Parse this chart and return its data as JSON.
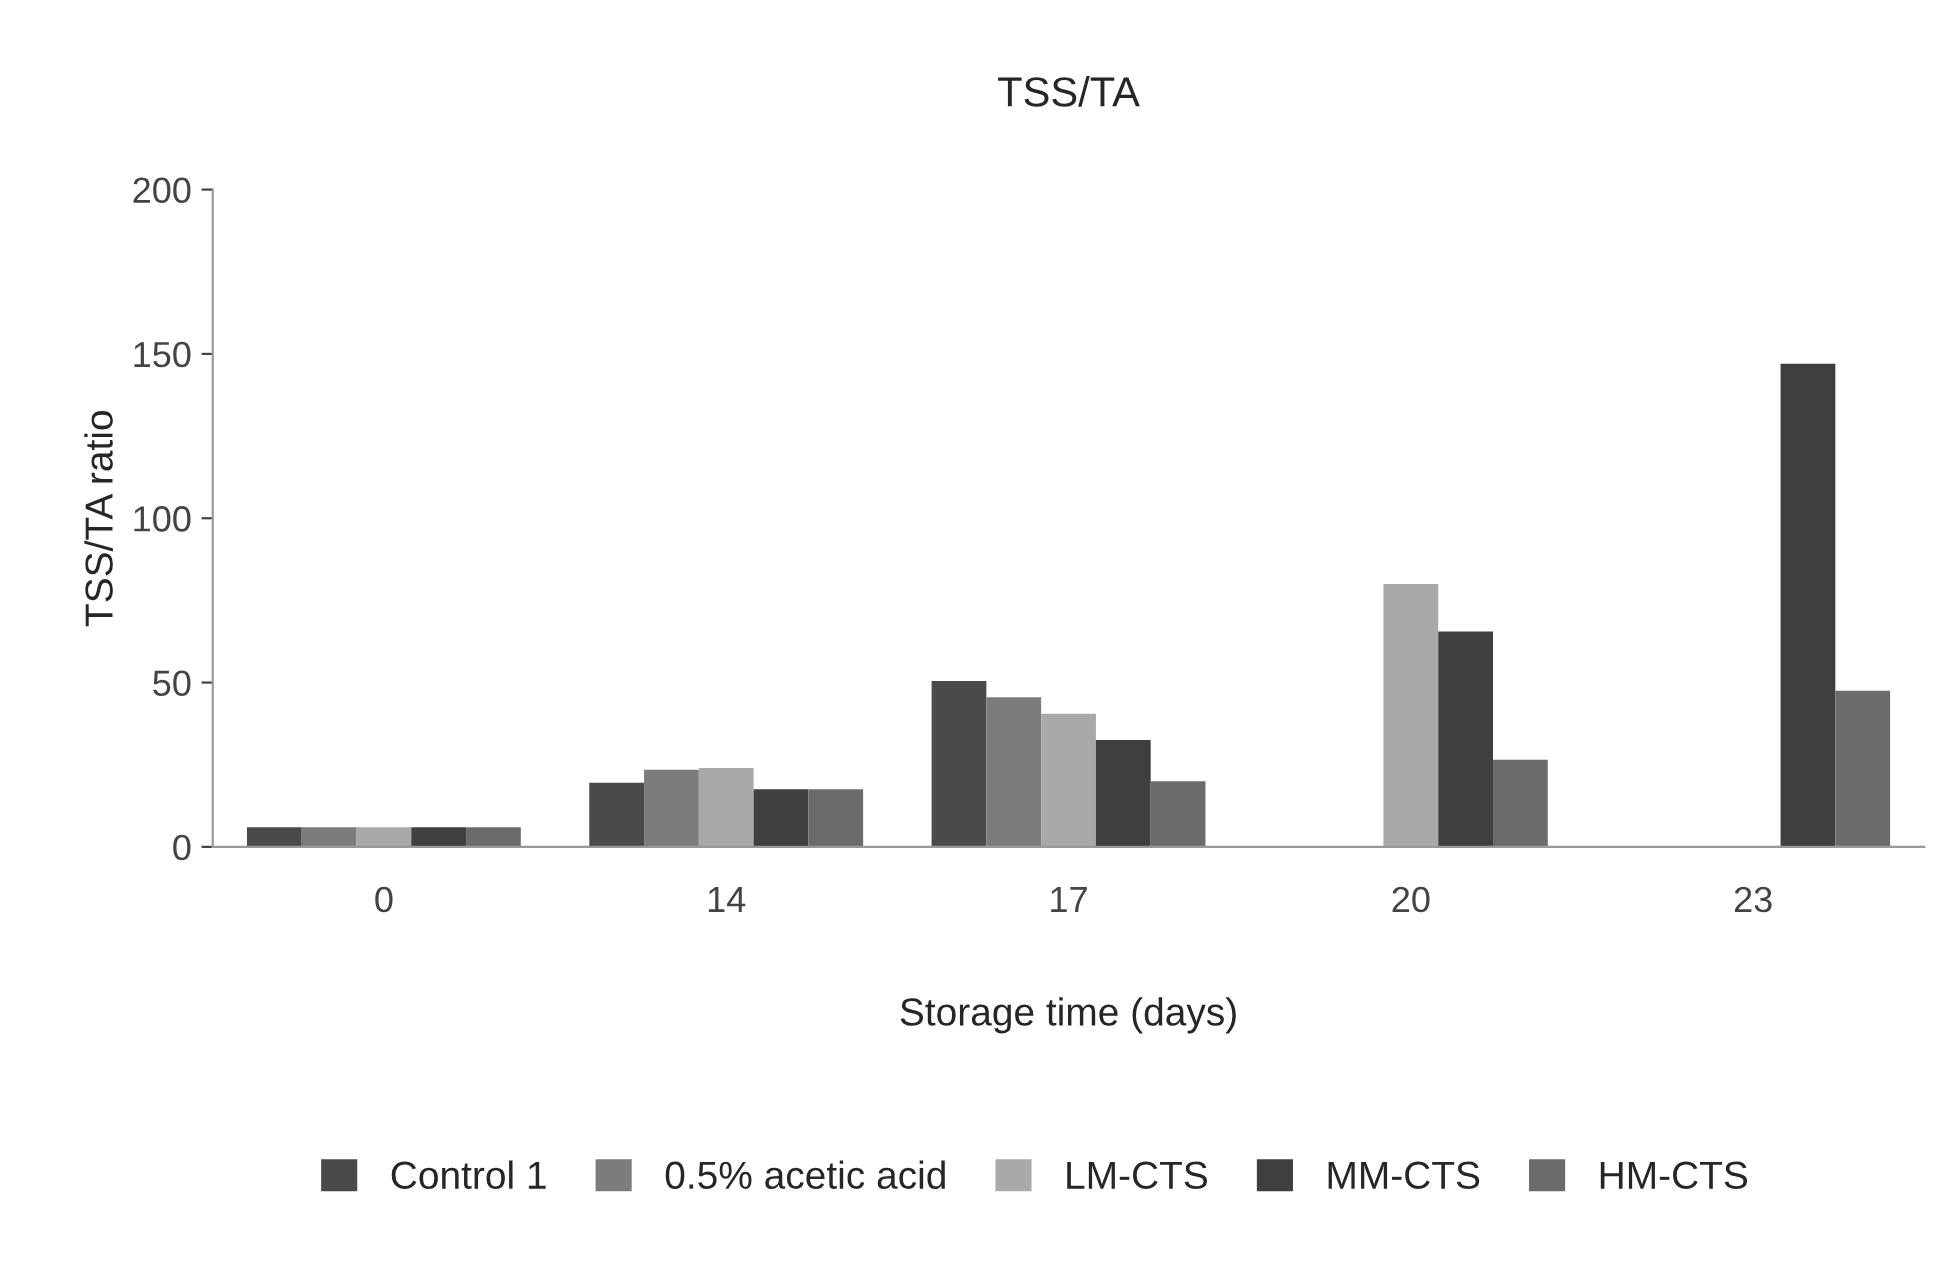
{
  "chart_data": {
    "type": "bar",
    "title": "TSS/TA",
    "xlabel": "Storage time (days)",
    "ylabel": "TSS/TA ratio",
    "categories": [
      "0",
      "14",
      "17",
      "20",
      "23"
    ],
    "series": [
      {
        "name": "Control 1",
        "color": "#4a4a4a",
        "values": [
          6,
          19.5,
          50.5,
          null,
          null
        ]
      },
      {
        "name": "0.5% acetic acid",
        "color": "#7c7c7c",
        "values": [
          6,
          23.5,
          45.5,
          null,
          null
        ]
      },
      {
        "name": "LM-CTS",
        "color": "#a9a9a9",
        "values": [
          6,
          24,
          40.5,
          80,
          null
        ]
      },
      {
        "name": "MM-CTS",
        "color": "#3f3f3f",
        "values": [
          6,
          17.5,
          32.5,
          65.5,
          147
        ]
      },
      {
        "name": "HM-CTS",
        "color": "#6b6b6b",
        "values": [
          6,
          17.5,
          20,
          26.5,
          47.5
        ]
      }
    ],
    "ylim": [
      0,
      200
    ],
    "yticks": [
      0,
      50,
      100,
      150,
      200
    ],
    "grid": false,
    "legend": "bottom"
  }
}
